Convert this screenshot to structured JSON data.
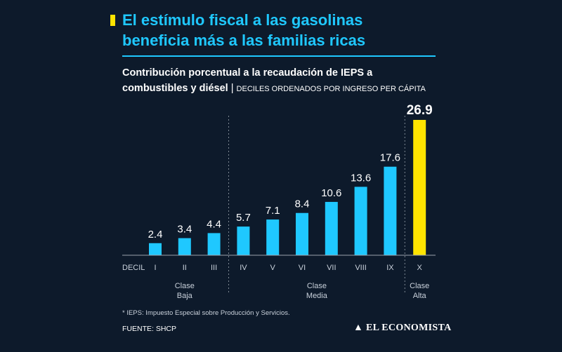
{
  "header": {
    "title_line1": "El estímulo fiscal a las gasolinas",
    "title_line2": "beneficia más a las familias ricas",
    "subtitle_line1": "Contribución porcentual a la recaudación de IEPS a",
    "subtitle_line2": "combustibles y diésel",
    "subtitle_separator": "|",
    "subtitle_note": "DECILES ORDENADOS POR INGRESO PER CÁPITA"
  },
  "colors": {
    "background": "#0d1a2b",
    "bar": "#1fc8ff",
    "highlight": "#ffe400",
    "title": "#1fc8ff"
  },
  "chart_data": {
    "type": "bar",
    "title": "Contribución porcentual a la recaudación de IEPS a combustibles y diésel",
    "xlabel": "DECIL",
    "ylabel": "",
    "categories": [
      "I",
      "II",
      "III",
      "IV",
      "V",
      "VI",
      "VII",
      "VIII",
      "IX",
      "X"
    ],
    "values": [
      2.4,
      3.4,
      4.4,
      5.7,
      7.1,
      8.4,
      10.6,
      13.6,
      17.6,
      26.9
    ],
    "value_labels": [
      "2.4",
      "3.4",
      "4.4",
      "5.7",
      "7.1",
      "8.4",
      "10.6",
      "13.6",
      "17.6",
      "26.9"
    ],
    "highlight_index": 9,
    "ylim": [
      0,
      26.9
    ],
    "grid": false,
    "groups": [
      {
        "line1": "Clase",
        "line2": "Baja",
        "first": 0,
        "last": 2
      },
      {
        "line1": "Clase",
        "line2": "Media",
        "first": 3,
        "last": 8
      },
      {
        "line1": "Clase",
        "line2": "Alta",
        "first": 9,
        "last": 9
      }
    ]
  },
  "footer": {
    "footnote": "* IEPS: Impuesto Especial sobre Producción y Servicios.",
    "source": "FUENTE: SHCP",
    "brand": "EL ECONOMISTA",
    "brand_mark": "▲"
  }
}
